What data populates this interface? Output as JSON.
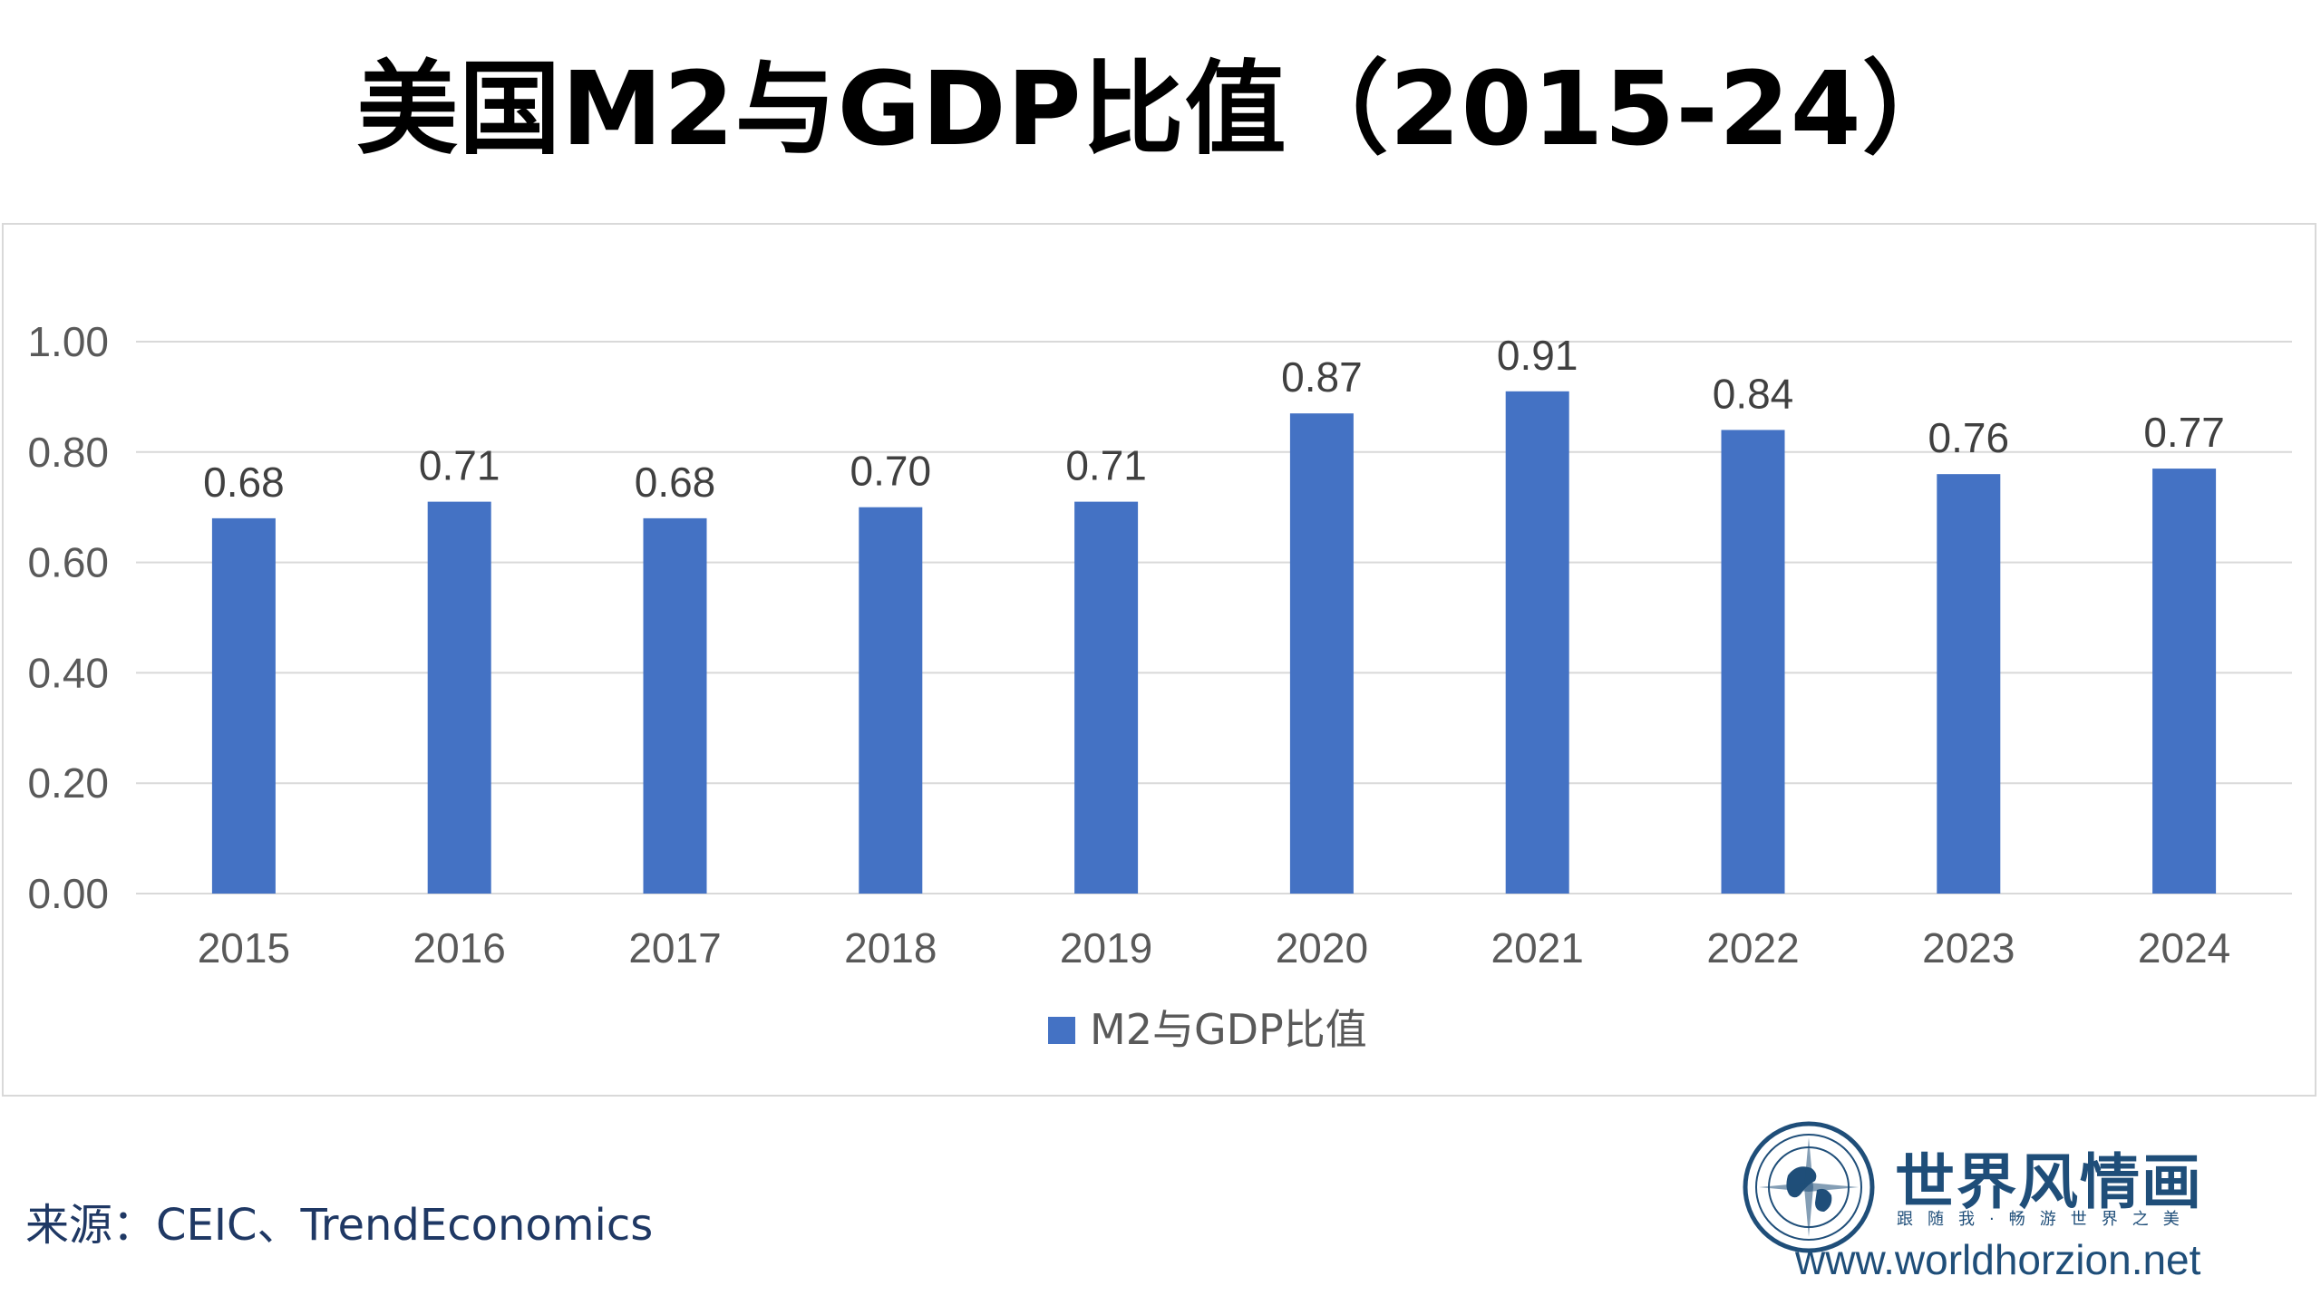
{
  "title": "美国M2与GDP比值（2015-24）",
  "source": "来源：CEIC、TrendEconomics",
  "logo": {
    "name": "世界风情画",
    "tagline": "跟随我·畅游世界之美",
    "url": "www.worldhorzion.net"
  },
  "colors": {
    "bar": "#4472c4",
    "grid": "#d9d9d9",
    "axis_text": "#595959",
    "brand": "#1f4e79"
  },
  "chart_data": {
    "type": "bar",
    "categories": [
      "2015",
      "2016",
      "2017",
      "2018",
      "2019",
      "2020",
      "2021",
      "2022",
      "2023",
      "2024"
    ],
    "series": [
      {
        "name": "M2与GDP比值",
        "values": [
          0.68,
          0.71,
          0.68,
          0.7,
          0.71,
          0.87,
          0.91,
          0.84,
          0.76,
          0.77
        ],
        "labels": [
          "0.68",
          "0.71",
          "0.68",
          "0.70",
          "0.71",
          "0.87",
          "0.91",
          "0.84",
          "0.76",
          "0.77"
        ]
      }
    ],
    "yticks": [
      "0.00",
      "0.20",
      "0.40",
      "0.60",
      "0.80",
      "1.00"
    ],
    "ylim": [
      0,
      1.0
    ],
    "grid": true,
    "legend": "bottom-center"
  }
}
